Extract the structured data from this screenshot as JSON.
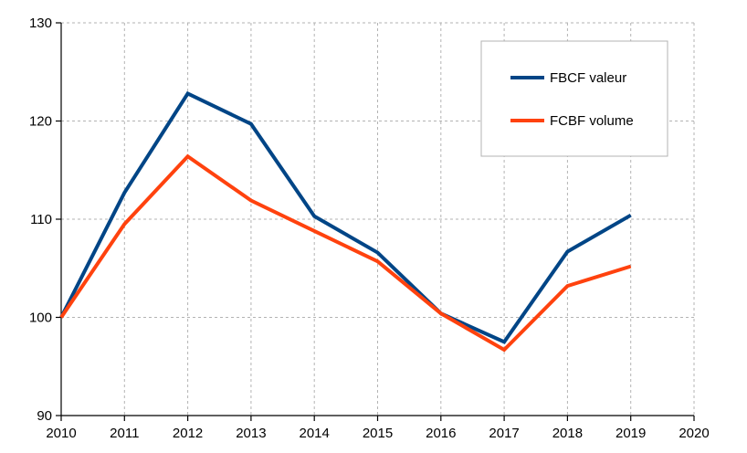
{
  "chart_data": {
    "type": "line",
    "title": "",
    "xlabel": "",
    "ylabel": "",
    "x": [
      2010,
      2011,
      2012,
      2013,
      2014,
      2015,
      2016,
      2017,
      2018,
      2019
    ],
    "xlim": [
      2010,
      2020
    ],
    "ylim": [
      90,
      130
    ],
    "x_ticks": [
      "2010",
      "2011",
      "2012",
      "2013",
      "2014",
      "2015",
      "2016",
      "2017",
      "2018",
      "2019",
      "2020"
    ],
    "y_ticks": [
      "90",
      "100",
      "110",
      "120",
      "130"
    ],
    "grid": true,
    "legend_position": "top-right",
    "series": [
      {
        "name": "FBCF valeur",
        "color": "#004586",
        "values": [
          100,
          112.7,
          122.8,
          119.7,
          110.3,
          106.6,
          100.4,
          97.5,
          106.7,
          110.4
        ]
      },
      {
        "name": "FCBF volume",
        "color": "#ff420e",
        "values": [
          100,
          109.5,
          116.4,
          111.9,
          108.8,
          105.7,
          100.4,
          96.7,
          103.2,
          105.2
        ]
      }
    ]
  }
}
